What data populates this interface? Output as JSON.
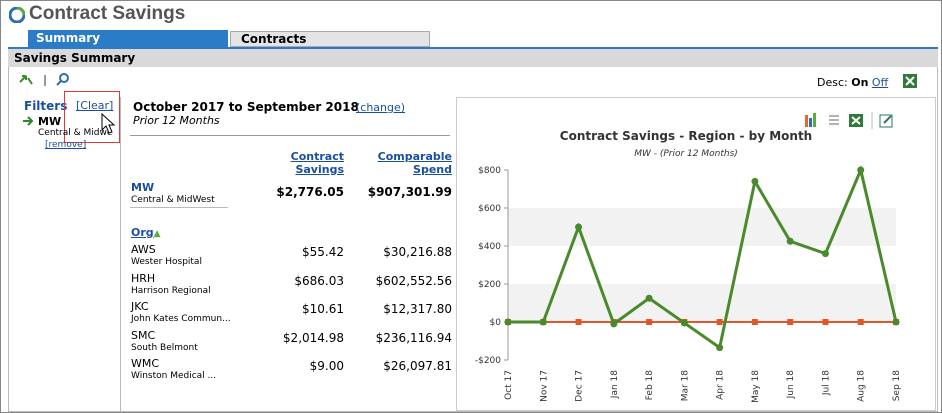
{
  "header": {
    "title": "Contract Savings"
  },
  "tabs": [
    "Summary",
    "Contracts"
  ],
  "section": {
    "title": "Savings Summary"
  },
  "toolbar": {
    "desc_label": "Desc:",
    "on": "On",
    "off": "Off"
  },
  "filters": {
    "title": "Filters",
    "clear": "[Clear]",
    "items": [
      {
        "code": "MW",
        "name": "Central & Midwe",
        "remove": "[remove]"
      }
    ]
  },
  "summary": {
    "period": "October 2017 to September 2018",
    "change": "(change)",
    "subtitle": "Prior 12 Months",
    "columns": [
      "Contract Savings",
      "Comparable Spend"
    ],
    "total": {
      "code": "MW",
      "name": "Central & MidWest",
      "savings": "$2,776.05",
      "spend": "$907,301.99"
    },
    "group_label": "Org",
    "rows": [
      {
        "code": "AWS",
        "name": "Wester Hospital",
        "savings": "$55.42",
        "spend": "$30,216.88"
      },
      {
        "code": "HRH",
        "name": "Harrison Regional",
        "savings": "$686.03",
        "spend": "$602,552.56"
      },
      {
        "code": "JKC",
        "name": "John Kates Commun...",
        "savings": "$10.61",
        "spend": "$12,317.80"
      },
      {
        "code": "SMC",
        "name": "South Belmont",
        "savings": "$2,014.98",
        "spend": "$236,116.94"
      },
      {
        "code": "WMC",
        "name": "Winston Medical ...",
        "savings": "$9.00",
        "spend": "$26,097.81"
      }
    ]
  },
  "chart_data": {
    "type": "line",
    "title": "Contract Savings - Region - by Month",
    "subtitle": "MW - (Prior 12 Months)",
    "categories": [
      "Oct 17",
      "Nov 17",
      "Dec 17",
      "Jan 18",
      "Feb 18",
      "Mar 18",
      "Apr 18",
      "May 18",
      "Jun 18",
      "Jul 18",
      "Aug 18",
      "Sep 18"
    ],
    "series": [
      {
        "color": "#4a8a2c",
        "values": [
          0,
          0,
          500,
          -10,
          125,
          -5,
          -135,
          740,
          425,
          360,
          800,
          0
        ]
      },
      {
        "color": "#e0582a",
        "values": [
          0,
          0,
          0,
          0,
          0,
          0,
          0,
          0,
          0,
          0,
          0,
          0
        ]
      }
    ],
    "ylim": [
      -200,
      800
    ],
    "yticks": [
      {
        "value": -200,
        "label": "-$200"
      },
      {
        "value": 0,
        "label": "$0"
      },
      {
        "value": 200,
        "label": "$200"
      },
      {
        "value": 400,
        "label": "$400"
      },
      {
        "value": 600,
        "label": "$600"
      },
      {
        "value": 800,
        "label": "$800"
      }
    ],
    "grid": true
  }
}
